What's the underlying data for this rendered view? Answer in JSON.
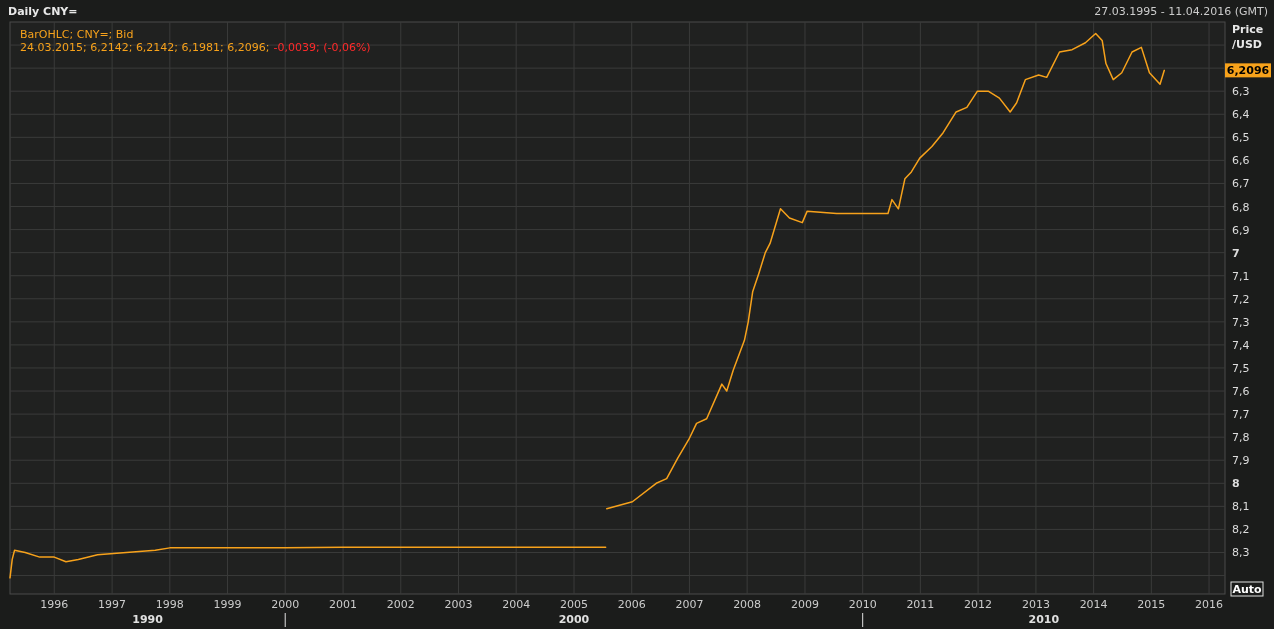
{
  "chart_data": {
    "type": "line",
    "title": "Daily CNY=",
    "subtitle": "27.03.1995 - 11.04.2016 (GMT)",
    "ylabel": "Price /USD",
    "annotations": [
      "BarOHLC; CNY=; Bid",
      "24.03.2015; 6,2142; 6,2142; 6,1981; 6,2096;",
      "-0,0039; (-0,06%)",
      "Auto",
      "6,2096",
      "1990",
      "2000",
      "2010"
    ],
    "xlim": [
      "1995-03-27",
      "2016-04-11"
    ],
    "xticks": [
      {
        "value": "1996-01-01",
        "label": "1996"
      },
      {
        "value": "1997-01-01",
        "label": "1997"
      },
      {
        "value": "1998-01-01",
        "label": "1998"
      },
      {
        "value": "1999-01-01",
        "label": "1999"
      },
      {
        "value": "2000-01-01",
        "label": "2000"
      },
      {
        "value": "2001-01-01",
        "label": "2001"
      },
      {
        "value": "2002-01-01",
        "label": "2002"
      },
      {
        "value": "2003-01-01",
        "label": "2003"
      },
      {
        "value": "2004-01-01",
        "label": "2004"
      },
      {
        "value": "2005-01-01",
        "label": "2005"
      },
      {
        "value": "2006-01-01",
        "label": "2006"
      },
      {
        "value": "2007-01-01",
        "label": "2007"
      },
      {
        "value": "2008-01-01",
        "label": "2008"
      },
      {
        "value": "2009-01-01",
        "label": "2009"
      },
      {
        "value": "2010-01-01",
        "label": "2010"
      },
      {
        "value": "2011-01-01",
        "label": "2011"
      },
      {
        "value": "2012-01-01",
        "label": "2012"
      },
      {
        "value": "2013-01-01",
        "label": "2013"
      },
      {
        "value": "2014-01-01",
        "label": "2014"
      },
      {
        "value": "2015-01-01",
        "label": "2015"
      },
      {
        "value": "2016-01-01",
        "label": "2016"
      }
    ],
    "ylim": [
      8.48,
      6.0
    ],
    "yticks": [
      {
        "value": 6.1,
        "label": null
      },
      {
        "value": 6.2,
        "label": null
      },
      {
        "value": 6.3,
        "label": "6,3"
      },
      {
        "value": 6.4,
        "label": "6,4"
      },
      {
        "value": 6.5,
        "label": "6,5"
      },
      {
        "value": 6.6,
        "label": "6,6"
      },
      {
        "value": 6.7,
        "label": "6,7"
      },
      {
        "value": 6.8,
        "label": "6,8"
      },
      {
        "value": 6.9,
        "label": "6,9"
      },
      7,
      {
        "value": 7.1,
        "label": "7,1"
      },
      {
        "value": 7.2,
        "label": "7,2"
      },
      {
        "value": 7.3,
        "label": "7,3"
      },
      {
        "value": 7.4,
        "label": "7,4"
      },
      {
        "value": 7.5,
        "label": "7,5"
      },
      {
        "value": 7.6,
        "label": "7,6"
      },
      {
        "value": 7.7,
        "label": "7,7"
      },
      {
        "value": 7.8,
        "label": "7,8"
      },
      {
        "value": 7.9,
        "label": "7,9"
      },
      8,
      {
        "value": 8.1,
        "label": "8,1"
      },
      {
        "value": 8.2,
        "label": "8,2"
      },
      {
        "value": 8.3,
        "label": "8,3"
      },
      {
        "value": 8.4,
        "label": null
      }
    ],
    "grid": true,
    "series": [
      {
        "color": "#f7a21b",
        "x": [
          "1995-03-27",
          "1995-04-10",
          "1995-04-25",
          "1995-07-01",
          "1995-10-01",
          "1996-01-01",
          "1996-03-15",
          "1996-06-01",
          "1996-10-01",
          "1997-04-01",
          "1997-10-01",
          "1998-01-01",
          "1999-01-01",
          "2000-01-01",
          "2001-01-01",
          "2005-07-20",
          "2005-07-21",
          "2005-07-27",
          "2006-01-05",
          "2006-06-05",
          "2006-08-10",
          "2006-10-20",
          "2006-12-28",
          "2007-02-15",
          "2007-04-20",
          "2007-07-25",
          "2007-08-25",
          "2007-10-05",
          "2007-12-15",
          "2008-01-08",
          "2008-02-05",
          "2008-03-15",
          "2008-04-25",
          "2008-05-25",
          "2008-07-30",
          "2008-09-25",
          "2008-12-15",
          "2009-01-15",
          "2009-07-20",
          "2010-06-10",
          "2010-07-05",
          "2010-08-15",
          "2010-09-25",
          "2010-11-05",
          "2010-12-28",
          "2011-03-15",
          "2011-05-25",
          "2011-08-15",
          "2011-10-22",
          "2011-12-28",
          "2012-03-05",
          "2012-05-15",
          "2012-07-22",
          "2012-09-01",
          "2012-10-26",
          "2013-01-18",
          "2013-03-10",
          "2013-05-30",
          "2013-08-18",
          "2013-11-10",
          "2014-01-14",
          "2014-02-24",
          "2014-03-20",
          "2014-05-05",
          "2014-06-28",
          "2014-09-01",
          "2014-10-30",
          "2014-12-20",
          "2015-01-30",
          "2015-02-25",
          "2015-03-24"
        ],
        "values": [
          8.41,
          8.33,
          8.29,
          8.3,
          8.32,
          8.32,
          8.34,
          8.33,
          8.31,
          8.3,
          8.29,
          8.28,
          8.28,
          8.28,
          8.277,
          8.277,
          null,
          8.11,
          8.08,
          8.0,
          7.98,
          7.89,
          7.81,
          7.74,
          7.72,
          7.57,
          7.6,
          7.51,
          7.38,
          7.3,
          7.17,
          7.09,
          7.0,
          6.96,
          6.81,
          6.85,
          6.87,
          6.82,
          6.83,
          6.83,
          6.77,
          6.81,
          6.68,
          6.65,
          6.59,
          6.54,
          6.48,
          6.39,
          6.37,
          6.3,
          6.3,
          6.33,
          6.39,
          6.35,
          6.25,
          6.23,
          6.24,
          6.13,
          6.12,
          6.09,
          6.05,
          6.08,
          6.18,
          6.25,
          6.22,
          6.13,
          6.11,
          6.22,
          6.25,
          6.27,
          6.2096
        ]
      }
    ]
  }
}
